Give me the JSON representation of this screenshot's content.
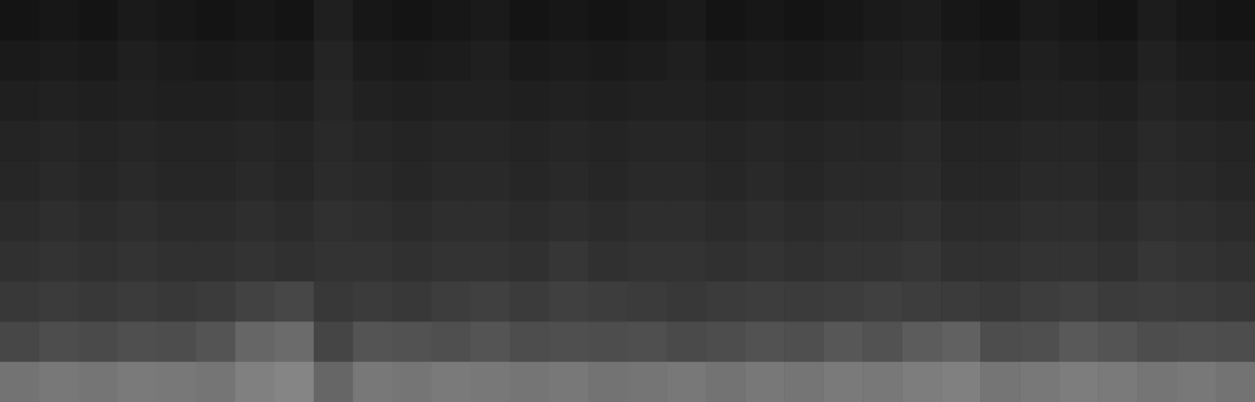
{
  "chart_data": {
    "type": "heatmap",
    "tick_labels": false,
    "xlim": [
      0,
      32
    ],
    "ylim": [
      0,
      10
    ],
    "zlim": [
      0,
      1
    ],
    "cells": [
      [
        0.08,
        0.09,
        0.08,
        0.1,
        0.09,
        0.08,
        0.09,
        0.08,
        0.12,
        0.09,
        0.08,
        0.09,
        0.1,
        0.08,
        0.09,
        0.08,
        0.09,
        0.1,
        0.08,
        0.09,
        0.08,
        0.09,
        0.1,
        0.11,
        0.09,
        0.08,
        0.1,
        0.09,
        0.08,
        0.11,
        0.09,
        0.08
      ],
      [
        0.1,
        0.11,
        0.1,
        0.12,
        0.11,
        0.1,
        0.11,
        0.1,
        0.14,
        0.11,
        0.1,
        0.11,
        0.12,
        0.1,
        0.11,
        0.1,
        0.11,
        0.12,
        0.1,
        0.11,
        0.1,
        0.11,
        0.12,
        0.13,
        0.11,
        0.1,
        0.12,
        0.11,
        0.1,
        0.13,
        0.11,
        0.1
      ],
      [
        0.12,
        0.13,
        0.12,
        0.13,
        0.12,
        0.12,
        0.13,
        0.12,
        0.15,
        0.13,
        0.12,
        0.13,
        0.13,
        0.12,
        0.13,
        0.12,
        0.13,
        0.13,
        0.12,
        0.13,
        0.12,
        0.13,
        0.13,
        0.14,
        0.12,
        0.12,
        0.13,
        0.13,
        0.12,
        0.14,
        0.13,
        0.12
      ],
      [
        0.14,
        0.15,
        0.14,
        0.15,
        0.14,
        0.14,
        0.15,
        0.14,
        0.16,
        0.15,
        0.14,
        0.15,
        0.15,
        0.14,
        0.15,
        0.14,
        0.15,
        0.15,
        0.14,
        0.15,
        0.14,
        0.15,
        0.15,
        0.16,
        0.14,
        0.14,
        0.15,
        0.15,
        0.14,
        0.16,
        0.15,
        0.14
      ],
      [
        0.15,
        0.16,
        0.15,
        0.16,
        0.15,
        0.15,
        0.16,
        0.15,
        0.17,
        0.16,
        0.15,
        0.16,
        0.16,
        0.15,
        0.16,
        0.15,
        0.16,
        0.16,
        0.15,
        0.16,
        0.15,
        0.16,
        0.16,
        0.17,
        0.15,
        0.15,
        0.16,
        0.16,
        0.15,
        0.17,
        0.16,
        0.15
      ],
      [
        0.17,
        0.18,
        0.17,
        0.18,
        0.17,
        0.17,
        0.18,
        0.17,
        0.19,
        0.18,
        0.17,
        0.18,
        0.18,
        0.17,
        0.18,
        0.17,
        0.18,
        0.18,
        0.17,
        0.18,
        0.17,
        0.18,
        0.18,
        0.19,
        0.17,
        0.17,
        0.18,
        0.18,
        0.17,
        0.19,
        0.18,
        0.17
      ],
      [
        0.19,
        0.2,
        0.19,
        0.2,
        0.19,
        0.19,
        0.2,
        0.19,
        0.2,
        0.2,
        0.19,
        0.2,
        0.2,
        0.19,
        0.21,
        0.19,
        0.2,
        0.2,
        0.19,
        0.2,
        0.19,
        0.2,
        0.2,
        0.21,
        0.19,
        0.19,
        0.2,
        0.2,
        0.19,
        0.21,
        0.2,
        0.19
      ],
      [
        0.22,
        0.23,
        0.22,
        0.23,
        0.22,
        0.23,
        0.26,
        0.28,
        0.22,
        0.23,
        0.22,
        0.24,
        0.25,
        0.23,
        0.25,
        0.24,
        0.23,
        0.22,
        0.23,
        0.24,
        0.23,
        0.24,
        0.25,
        0.24,
        0.23,
        0.22,
        0.24,
        0.25,
        0.23,
        0.24,
        0.23,
        0.22
      ],
      [
        0.28,
        0.3,
        0.29,
        0.31,
        0.3,
        0.33,
        0.4,
        0.42,
        0.27,
        0.33,
        0.32,
        0.31,
        0.33,
        0.3,
        0.31,
        0.3,
        0.31,
        0.29,
        0.3,
        0.32,
        0.31,
        0.34,
        0.32,
        0.36,
        0.38,
        0.3,
        0.31,
        0.35,
        0.33,
        0.3,
        0.31,
        0.3
      ],
      [
        0.45,
        0.47,
        0.46,
        0.48,
        0.47,
        0.46,
        0.5,
        0.52,
        0.4,
        0.47,
        0.46,
        0.48,
        0.47,
        0.46,
        0.47,
        0.45,
        0.46,
        0.47,
        0.45,
        0.47,
        0.46,
        0.48,
        0.47,
        0.49,
        0.5,
        0.46,
        0.47,
        0.49,
        0.48,
        0.46,
        0.47,
        0.45
      ]
    ]
  }
}
